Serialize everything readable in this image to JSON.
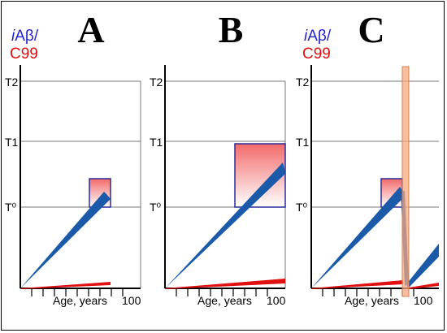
{
  "panels": [
    {
      "letter": "A"
    },
    {
      "letter": "B"
    },
    {
      "letter": "C"
    }
  ],
  "ylabel": {
    "iab_i": "i",
    "iab_rest": "Aβ/",
    "c99": "C99"
  },
  "yticks": {
    "t2": "T2",
    "t1": "T1",
    "t0": "T⁰"
  },
  "xlabel": "Age, years",
  "xmax": "100",
  "colors": {
    "iab": "#1a5aa8",
    "c99": "#e01010",
    "box_border": "#2a2a9a",
    "box_grad_top": "#f26b6b",
    "drug_band": "#f4a77f"
  }
}
